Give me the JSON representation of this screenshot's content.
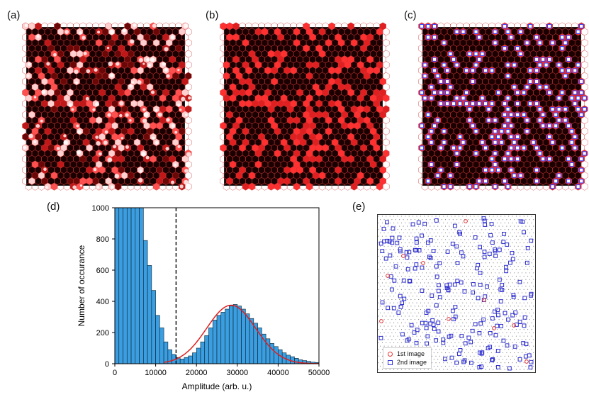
{
  "panels": {
    "a": {
      "label": "(a)"
    },
    "b": {
      "label": "(b)"
    },
    "c": {
      "label": "(c)"
    },
    "d": {
      "label": "(d)"
    },
    "e": {
      "label": "(e)"
    }
  },
  "legend": {
    "first": "1st image",
    "second": "2nd image",
    "first_color": "#e03030",
    "second_color": "#3030d0"
  },
  "chart_data": {
    "type": "bar",
    "xlabel": "Amplitude (arb. u.)",
    "ylabel": "Number of occurance",
    "xlim": [
      0,
      50000
    ],
    "ylim": [
      0,
      1000
    ],
    "xticks": [
      0,
      10000,
      20000,
      30000,
      40000,
      50000
    ],
    "yticks": [
      0,
      200,
      400,
      600,
      800,
      1000
    ],
    "bin_width": 1000,
    "threshold": 15000,
    "bar_color": "#3a9ee0",
    "fit_color": "#e02020",
    "fit": {
      "amplitude": 375,
      "center": 28500,
      "sigma": 6000
    },
    "bins_start": 0,
    "counts": [
      1000,
      1000,
      1000,
      1000,
      1000,
      1000,
      1000,
      790,
      630,
      470,
      310,
      230,
      140,
      90,
      60,
      40,
      30,
      40,
      50,
      70,
      100,
      140,
      180,
      230,
      280,
      310,
      330,
      350,
      370,
      380,
      370,
      350,
      320,
      290,
      260,
      230,
      190,
      160,
      130,
      110,
      90,
      70,
      55,
      45,
      35,
      25,
      20,
      15,
      10,
      8
    ]
  }
}
